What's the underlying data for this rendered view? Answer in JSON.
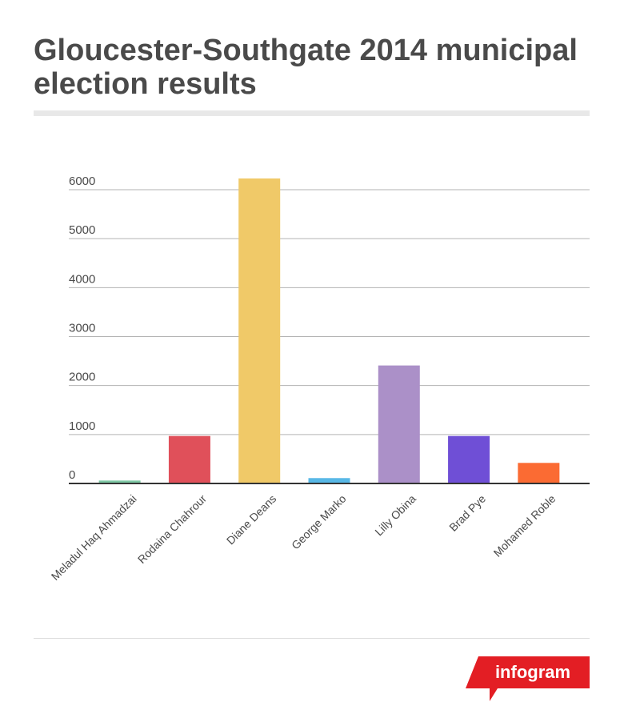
{
  "title": "Gloucester-Southgate 2014 municipal election results",
  "brand": {
    "label": "infogram",
    "color": "#e31e24"
  },
  "chart_data": {
    "type": "bar",
    "title": "Gloucester-Southgate 2014 municipal election results",
    "xlabel": "",
    "ylabel": "",
    "ylim": [
      0,
      6000
    ],
    "yticks": [
      "0",
      "1000",
      "2000",
      "3000",
      "4000",
      "5000",
      "6000"
    ],
    "grid": true,
    "legend": "none",
    "categories": [
      "Meladul Haq Ahmadzai",
      "Rodaina Chahrour",
      "Diane Deans",
      "George Marko",
      "Lilly Obina",
      "Brad Pye",
      "Mohamed Roble"
    ],
    "values": [
      60,
      970,
      6230,
      110,
      2410,
      970,
      420
    ],
    "colors": [
      "#7ec8a4",
      "#e0505a",
      "#f0c968",
      "#58b8e6",
      "#ab90c8",
      "#6f4fd6",
      "#fb6b33"
    ]
  }
}
